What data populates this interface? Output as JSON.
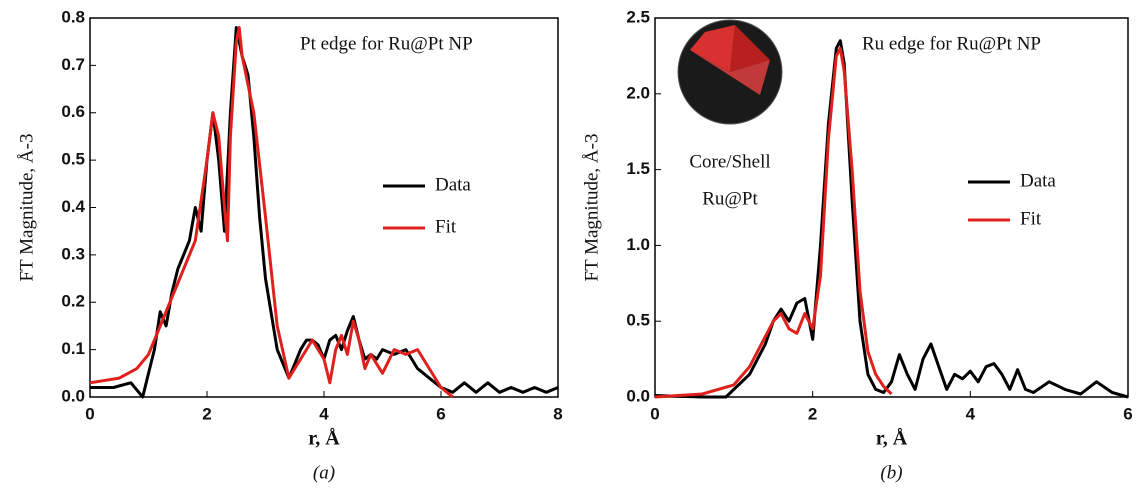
{
  "chart_data": [
    {
      "type": "line",
      "caption": "(a)",
      "annotation": "Pt edge for Ru@Pt NP",
      "xlabel": "r, Å",
      "ylabel": "FT Magnitude, Å-3",
      "xlim": [
        0,
        8
      ],
      "xticks": [
        0,
        2,
        4,
        6,
        8
      ],
      "ylim": [
        0,
        0.8
      ],
      "yticks": [
        {
          "value": 0,
          "label": "0.0"
        },
        0.1,
        0.2,
        0.3,
        0.4,
        0.5,
        0.6,
        0.7,
        0.8
      ],
      "series": [
        {
          "name": "Data",
          "color": "#000000",
          "x": [
            0,
            0.4,
            0.7,
            0.9,
            1.0,
            1.1,
            1.2,
            1.3,
            1.4,
            1.5,
            1.6,
            1.7,
            1.8,
            1.9,
            2.0,
            2.1,
            2.2,
            2.3,
            2.4,
            2.5,
            2.6,
            2.7,
            2.8,
            2.9,
            3.0,
            3.2,
            3.4,
            3.5,
            3.6,
            3.7,
            3.8,
            3.9,
            4.0,
            4.1,
            4.2,
            4.3,
            4.4,
            4.5,
            4.6,
            4.7,
            4.8,
            4.9,
            5.0,
            5.2,
            5.4,
            5.6,
            5.8,
            6.0,
            6.2,
            6.4,
            6.6,
            6.8,
            7.0,
            7.2,
            7.4,
            7.6,
            7.8,
            8.0
          ],
          "values": [
            0.02,
            0.02,
            0.03,
            0.0,
            0.05,
            0.1,
            0.18,
            0.15,
            0.22,
            0.27,
            0.3,
            0.33,
            0.4,
            0.35,
            0.5,
            0.6,
            0.5,
            0.35,
            0.6,
            0.78,
            0.72,
            0.68,
            0.55,
            0.38,
            0.25,
            0.1,
            0.04,
            0.07,
            0.1,
            0.12,
            0.12,
            0.11,
            0.08,
            0.12,
            0.13,
            0.1,
            0.14,
            0.17,
            0.12,
            0.08,
            0.09,
            0.08,
            0.1,
            0.09,
            0.1,
            0.06,
            0.04,
            0.02,
            0.01,
            0.03,
            0.01,
            0.03,
            0.01,
            0.02,
            0.01,
            0.02,
            0.01,
            0.02
          ]
        },
        {
          "name": "Fit",
          "color": "#e0201c",
          "x": [
            0,
            0.5,
            0.8,
            1.0,
            1.2,
            1.4,
            1.6,
            1.8,
            2.0,
            2.1,
            2.2,
            2.3,
            2.35,
            2.4,
            2.5,
            2.55,
            2.6,
            2.8,
            3.0,
            3.2,
            3.4,
            3.6,
            3.8,
            4.0,
            4.1,
            4.2,
            4.3,
            4.4,
            4.5,
            4.6,
            4.7,
            4.8,
            5.0,
            5.2,
            5.4,
            5.6,
            5.8,
            6.0,
            6.2
          ],
          "values": [
            0.03,
            0.04,
            0.06,
            0.09,
            0.15,
            0.21,
            0.27,
            0.33,
            0.5,
            0.6,
            0.55,
            0.4,
            0.33,
            0.55,
            0.75,
            0.78,
            0.72,
            0.6,
            0.38,
            0.15,
            0.04,
            0.08,
            0.12,
            0.08,
            0.03,
            0.1,
            0.13,
            0.09,
            0.16,
            0.12,
            0.06,
            0.09,
            0.05,
            0.1,
            0.09,
            0.1,
            0.06,
            0.02,
            0.0
          ]
        }
      ]
    },
    {
      "type": "line",
      "caption": "(b)",
      "annotation": "Ru edge for Ru@Pt NP",
      "inset_labels": [
        "Core/Shell",
        "Ru@Pt"
      ],
      "xlabel": "r, Å",
      "ylabel": "FT Magnitude, Å-3",
      "xlim": [
        0,
        6
      ],
      "xticks": [
        0,
        2,
        4,
        6
      ],
      "ylim": [
        0,
        2.5
      ],
      "yticks": [
        {
          "value": 0,
          "label": "0.0"
        },
        0.5,
        {
          "value": 1,
          "label": "1.0"
        },
        1.5,
        {
          "value": 2,
          "label": "2.0"
        },
        2.5
      ],
      "series": [
        {
          "name": "Data",
          "color": "#000000",
          "x": [
            0,
            0.6,
            0.9,
            1.0,
            1.2,
            1.4,
            1.5,
            1.6,
            1.7,
            1.8,
            1.9,
            2.0,
            2.1,
            2.2,
            2.3,
            2.35,
            2.4,
            2.5,
            2.6,
            2.7,
            2.8,
            2.9,
            3.0,
            3.1,
            3.2,
            3.3,
            3.4,
            3.5,
            3.6,
            3.7,
            3.8,
            3.9,
            4.0,
            4.1,
            4.2,
            4.3,
            4.4,
            4.5,
            4.6,
            4.7,
            4.8,
            5.0,
            5.2,
            5.4,
            5.6,
            5.8,
            6.0
          ],
          "values": [
            0.01,
            0.0,
            0.0,
            0.05,
            0.15,
            0.35,
            0.5,
            0.58,
            0.5,
            0.62,
            0.65,
            0.38,
            1.0,
            1.8,
            2.3,
            2.35,
            2.2,
            1.3,
            0.5,
            0.15,
            0.05,
            0.03,
            0.1,
            0.28,
            0.15,
            0.05,
            0.25,
            0.35,
            0.2,
            0.05,
            0.15,
            0.12,
            0.17,
            0.1,
            0.2,
            0.22,
            0.15,
            0.05,
            0.18,
            0.05,
            0.03,
            0.1,
            0.05,
            0.02,
            0.1,
            0.03,
            0.0
          ]
        },
        {
          "name": "Fit",
          "color": "#e0201c",
          "x": [
            0,
            0.6,
            1.0,
            1.2,
            1.4,
            1.5,
            1.6,
            1.7,
            1.8,
            1.9,
            2.0,
            2.1,
            2.2,
            2.3,
            2.35,
            2.4,
            2.5,
            2.6,
            2.7,
            2.8,
            2.9,
            3.0
          ],
          "values": [
            0.0,
            0.02,
            0.08,
            0.2,
            0.4,
            0.5,
            0.55,
            0.45,
            0.42,
            0.55,
            0.45,
            0.8,
            1.7,
            2.25,
            2.3,
            2.15,
            1.5,
            0.7,
            0.3,
            0.15,
            0.07,
            0.02
          ]
        }
      ]
    }
  ]
}
